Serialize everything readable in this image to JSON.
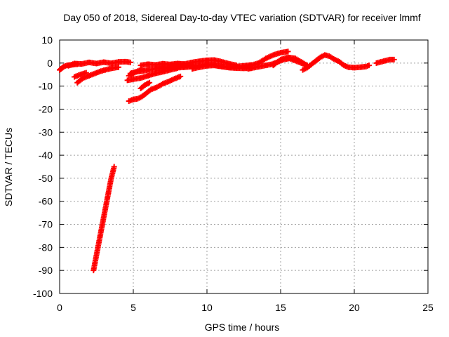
{
  "chart_data": {
    "type": "scatter",
    "title": "Day 050 of 2018, Sidereal Day-to-day VTEC variation (SDTVAR) for receiver lmmf",
    "xlabel": "GPS time / hours",
    "ylabel": "SDTVAR / TECUs",
    "xlim": [
      0,
      25
    ],
    "ylim": [
      -100,
      10
    ],
    "xticks": [
      0,
      5,
      10,
      15,
      20,
      25
    ],
    "yticks": [
      10,
      0,
      -10,
      -20,
      -30,
      -40,
      -50,
      -60,
      -70,
      -80,
      -90,
      -100
    ],
    "grid": true,
    "marker": "plus",
    "color": "#ff0000",
    "series": [
      {
        "x": [
          0.0,
          0.1,
          0.2,
          0.3,
          0.5,
          0.8,
          1.0,
          1.2
        ],
        "y": [
          -3,
          -2.5,
          -2,
          -1.5,
          -1,
          -0.8,
          -0.6,
          -0.5
        ]
      },
      {
        "x": [
          0.6,
          1.0,
          1.5,
          2.0,
          2.5,
          3.0,
          3.5,
          4.0,
          4.5,
          4.8
        ],
        "y": [
          -1.2,
          -0.2,
          -0.4,
          0.3,
          -0.2,
          0.4,
          -0.1,
          0.5,
          0.6,
          0.3
        ]
      },
      {
        "x": [
          1.2,
          1.6,
          2.0,
          2.4,
          2.8,
          3.2,
          3.6,
          4.0
        ],
        "y": [
          -8.5,
          -6.5,
          -5.5,
          -4.5,
          -3.5,
          -2.8,
          -2.2,
          -1.8
        ]
      },
      {
        "x": [
          1.0,
          1.4,
          1.8
        ],
        "y": [
          -6,
          -5,
          -4.2
        ]
      },
      {
        "x": [
          2.3,
          2.6,
          2.9,
          3.2,
          3.5,
          3.7
        ],
        "y": [
          -90,
          -80,
          -70,
          -60,
          -50,
          -45
        ]
      },
      {
        "x": [
          4.7,
          5.0,
          5.3,
          5.6,
          5.9,
          6.2,
          6.6,
          7.0,
          7.4,
          7.8,
          8.2
        ],
        "y": [
          -16.5,
          -15.8,
          -15.5,
          -14.5,
          -13,
          -11.5,
          -10.5,
          -9,
          -8,
          -6.8,
          -5.8
        ]
      },
      {
        "x": [
          5.5,
          5.8,
          6.1
        ],
        "y": [
          -11,
          -9.5,
          -8.5
        ]
      },
      {
        "x": [
          4.6,
          5.0,
          5.5,
          6.0,
          6.5,
          7.0,
          7.5,
          8.0
        ],
        "y": [
          -7.5,
          -7,
          -6.5,
          -5.5,
          -4.5,
          -3.8,
          -3,
          -2.2
        ]
      },
      {
        "x": [
          4.7,
          5.0,
          5.3,
          5.6
        ],
        "y": [
          -5.5,
          -4.5,
          -3.5,
          -2.6
        ]
      },
      {
        "x": [
          4.8,
          5.2,
          5.6,
          6.0,
          6.5,
          7.0,
          7.5,
          8.0,
          8.5,
          9.0
        ],
        "y": [
          -4.5,
          -3.8,
          -3.5,
          -3,
          -2.5,
          -2,
          -1.8,
          -1.5,
          -1.2,
          -1
        ]
      },
      {
        "x": [
          5.5,
          6.0,
          6.5,
          7.0,
          7.5,
          8.0,
          8.5
        ],
        "y": [
          -1,
          -0.5,
          -0.8,
          -0.3,
          -0.6,
          -0.2,
          -0.5
        ]
      },
      {
        "x": [
          6.5,
          7.0,
          7.5,
          8.0,
          8.5,
          9.0,
          9.5,
          10.0,
          10.5
        ],
        "y": [
          -2.5,
          -2.3,
          -2.1,
          -2,
          -1.8,
          -1.5,
          -1,
          -0.5,
          -0.5
        ]
      },
      {
        "x": [
          7.5,
          8.0,
          8.5,
          9.0,
          9.5,
          10.0,
          10.5,
          11.0,
          11.5,
          12.0
        ],
        "y": [
          -1,
          -0.5,
          -0.4,
          0.3,
          0.8,
          1.2,
          1.3,
          0.6,
          -0.3,
          -1
        ]
      },
      {
        "x": [
          9.0,
          9.5,
          10.0,
          10.5,
          11.0,
          11.5,
          12.0,
          12.5,
          13.0
        ],
        "y": [
          -2.5,
          -1.8,
          -1.2,
          -1,
          -1.5,
          -2,
          -2.2,
          -2.3,
          -2.2
        ]
      },
      {
        "x": [
          10.5,
          11.0,
          11.5,
          12.0,
          12.5,
          13.0
        ],
        "y": [
          -1,
          -1.5,
          -1.8,
          -1.5,
          -1.2,
          -0.8
        ]
      },
      {
        "x": [
          12.5,
          13.0,
          13.5,
          14.0,
          14.5,
          15.0,
          15.5
        ],
        "y": [
          -2,
          -1,
          0,
          2,
          3.5,
          4.5,
          5
        ]
      },
      {
        "x": [
          12.8,
          13.2,
          13.6,
          14.0,
          14.4,
          14.8,
          15.2,
          15.6,
          16.0,
          16.4,
          16.8
        ],
        "y": [
          -2.5,
          -2,
          -1.5,
          -1,
          -0.5,
          0.5,
          1.5,
          2,
          1,
          0,
          -1
        ]
      },
      {
        "x": [
          14.5,
          15.0,
          15.5,
          16.0,
          16.4,
          16.8
        ],
        "y": [
          -1,
          1.5,
          2.5,
          2,
          0.5,
          -1
        ]
      },
      {
        "x": [
          16.5,
          16.8,
          17.1,
          17.4,
          17.7,
          18.0,
          18.3,
          18.6,
          19.0,
          19.3,
          19.6,
          20.0,
          20.4,
          20.8,
          21.0
        ],
        "y": [
          -3,
          -2,
          -0.5,
          1,
          2.5,
          3.5,
          3,
          1.8,
          0.5,
          -1,
          -1.8,
          -2,
          -1.8,
          -1.5,
          -1
        ]
      },
      {
        "x": [
          21.5,
          21.8,
          22.1,
          22.4,
          22.7
        ],
        "y": [
          0,
          0.5,
          1,
          1.5,
          1.5
        ]
      }
    ]
  }
}
